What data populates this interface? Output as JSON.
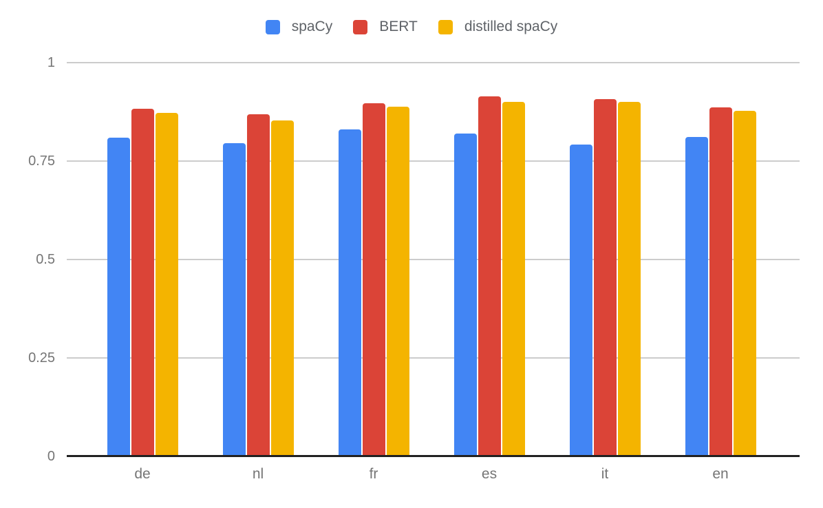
{
  "chart_data": {
    "type": "bar",
    "title": "",
    "categories": [
      "de",
      "nl",
      "fr",
      "es",
      "it",
      "en"
    ],
    "series": [
      {
        "name": "spaCy",
        "color": "#4285F4",
        "values": [
          0.81,
          0.795,
          0.83,
          0.82,
          0.792,
          0.812
        ]
      },
      {
        "name": "BERT",
        "color": "#DB4437",
        "values": [
          0.883,
          0.869,
          0.897,
          0.915,
          0.908,
          0.886
        ]
      },
      {
        "name": "distilled spaCy",
        "color": "#F4B400",
        "values": [
          0.872,
          0.854,
          0.889,
          0.901,
          0.9,
          0.877
        ]
      }
    ],
    "xlabel": "",
    "ylabel": "",
    "ylim": [
      0,
      1
    ],
    "y_ticks": {
      "values": [
        0,
        0.25,
        0.5,
        0.75,
        1
      ],
      "labels": [
        "0",
        "0.25",
        "0.5",
        "0.75",
        "1"
      ]
    },
    "legend_position": "top-center",
    "grid": true,
    "colors": {
      "gridline": "#cccccc",
      "axis_line": "#212121",
      "tick_label": "#757575",
      "legend_label": "#5f6368",
      "background": "#ffffff"
    }
  }
}
